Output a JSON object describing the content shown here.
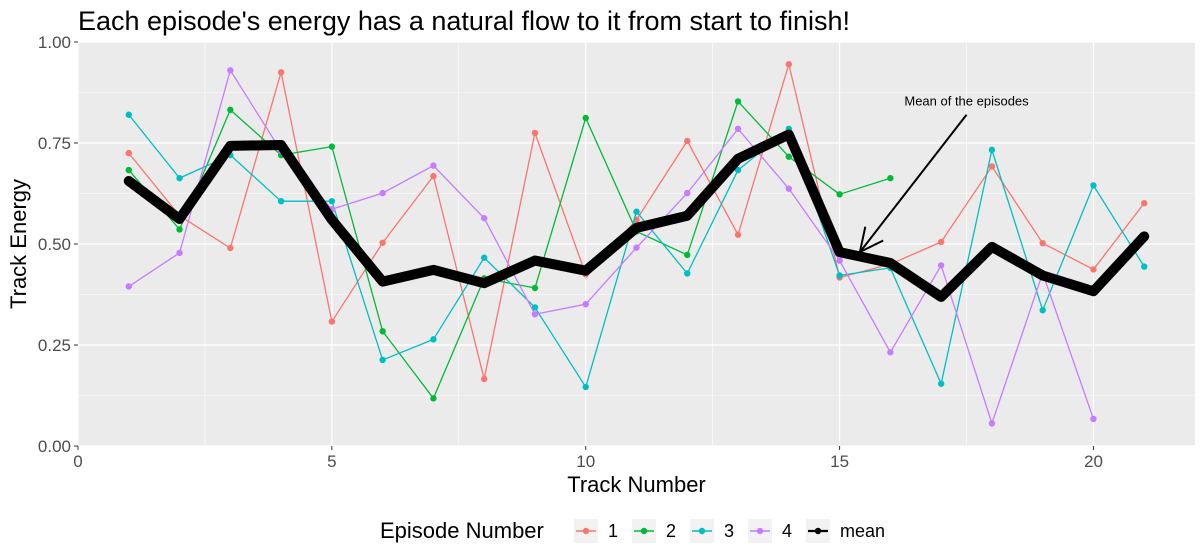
{
  "chart_data": {
    "type": "line",
    "title": "Each episode's energy has a natural flow to it from start to finish!",
    "xlabel": "Track Number",
    "ylabel": "Track Energy",
    "xlim": [
      0,
      22
    ],
    "ylim": [
      0,
      1
    ],
    "x_ticks": [
      0,
      5,
      10,
      15,
      20
    ],
    "y_ticks": [
      0,
      0.25,
      0.5,
      0.75,
      1
    ],
    "x_tick_labels": [
      "0",
      "5",
      "10",
      "15",
      "20"
    ],
    "y_tick_labels": [
      "0.00",
      "0.25",
      "0.50",
      "0.75",
      "1.00"
    ],
    "grid": true,
    "legend_position": "bottom",
    "legend_title": "Episode Number",
    "series": [
      {
        "name": "1",
        "color": "#F8766D",
        "x": [
          1,
          2,
          3,
          4,
          5,
          6,
          7,
          8,
          9,
          10,
          11,
          12,
          13,
          14,
          15,
          16,
          17,
          18,
          19,
          20,
          21
        ],
        "y": [
          0.725,
          0.57,
          0.49,
          0.925,
          0.308,
          0.503,
          0.668,
          0.166,
          0.775,
          0.425,
          0.56,
          0.755,
          0.523,
          0.945,
          0.417,
          0.45,
          0.505,
          0.692,
          0.502,
          0.437,
          0.601
        ]
      },
      {
        "name": "2",
        "color": "#00BA38",
        "x": [
          1,
          2,
          3,
          4,
          5,
          6,
          7,
          8,
          9,
          10,
          11,
          12,
          13,
          14,
          15,
          16
        ],
        "y": [
          0.683,
          0.536,
          0.832,
          0.72,
          0.741,
          0.284,
          0.118,
          0.415,
          0.391,
          0.812,
          0.531,
          0.473,
          0.853,
          0.716,
          0.623,
          0.663
        ]
      },
      {
        "name": "3",
        "color": "#00BFC4",
        "x": [
          1,
          2,
          3,
          4,
          5,
          6,
          7,
          8,
          9,
          10,
          11,
          12,
          13,
          14,
          15,
          16,
          17,
          18,
          19,
          20,
          21
        ],
        "y": [
          0.82,
          0.663,
          0.72,
          0.606,
          0.606,
          0.213,
          0.264,
          0.466,
          0.343,
          0.146,
          0.58,
          0.427,
          0.683,
          0.785,
          0.422,
          0.441,
          0.154,
          0.733,
          0.336,
          0.645,
          0.444
        ]
      },
      {
        "name": "4",
        "color": "#C77CFF",
        "x": [
          1,
          2,
          3,
          4,
          5,
          6,
          7,
          8,
          9,
          10,
          11,
          12,
          13,
          14,
          15,
          16,
          17,
          18,
          19,
          20
        ],
        "y": [
          0.395,
          0.478,
          0.93,
          0.73,
          0.586,
          0.626,
          0.694,
          0.564,
          0.326,
          0.351,
          0.491,
          0.626,
          0.785,
          0.637,
          0.459,
          0.232,
          0.447,
          0.056,
          0.428,
          0.067
        ]
      },
      {
        "name": "mean",
        "color": "#000000",
        "x": [
          1,
          2,
          3,
          4,
          5,
          6,
          7,
          8,
          9,
          10,
          11,
          12,
          13,
          14,
          15,
          16,
          17,
          18,
          19,
          20,
          21
        ],
        "y": [
          0.656,
          0.562,
          0.743,
          0.745,
          0.56,
          0.407,
          0.436,
          0.403,
          0.459,
          0.434,
          0.54,
          0.57,
          0.711,
          0.771,
          0.48,
          0.453,
          0.369,
          0.493,
          0.422,
          0.383,
          0.519
        ]
      }
    ],
    "annotation": {
      "text": "Mean of the episodes",
      "text_x": 17.5,
      "text_y": 0.84,
      "arrow_from_x": 17.5,
      "arrow_from_y": 0.82,
      "arrow_to_x": 15.4,
      "arrow_to_y": 0.48
    }
  }
}
